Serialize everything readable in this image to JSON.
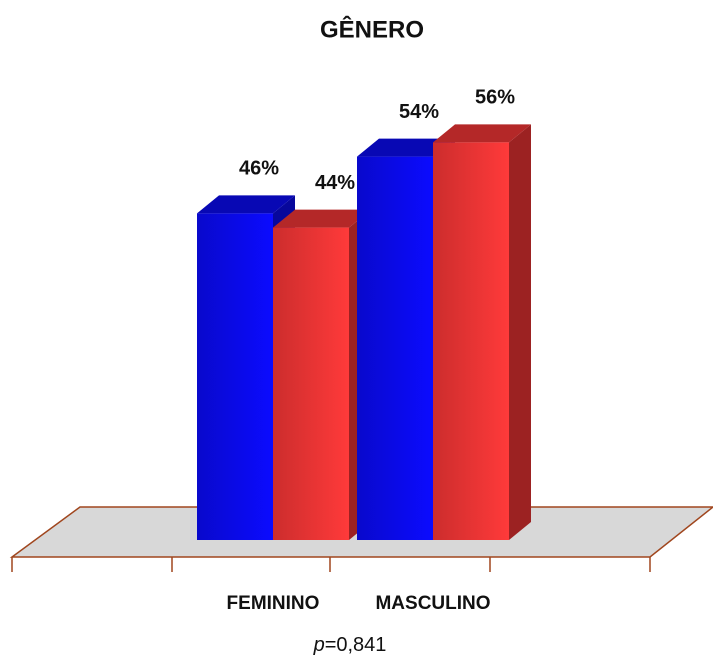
{
  "chart_data": {
    "type": "bar3d",
    "title": "GÊNERO",
    "categories": [
      "FEMININO",
      "MASCULINO"
    ],
    "series": [
      {
        "color": "#0a0af0",
        "values": [
          46,
          54
        ],
        "value_labels": [
          "46%",
          "54%"
        ]
      },
      {
        "color": "#f03535",
        "values": [
          44,
          56
        ],
        "value_labels": [
          "44%",
          "56%"
        ]
      }
    ],
    "ylim": [
      0,
      60
    ],
    "annotation": "p=0,841"
  }
}
